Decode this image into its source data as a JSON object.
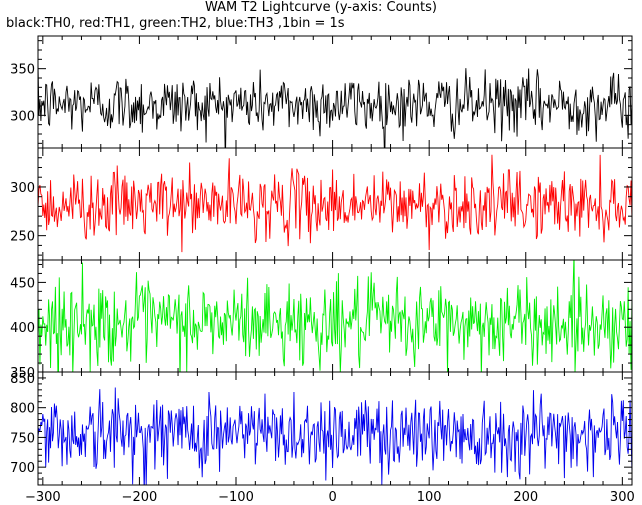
{
  "title": "WAM T2 Lightcurve (y-axis: Counts)",
  "subtitle": "black:TH0, red:TH1, green:TH2, blue:TH3 ,1bin = 1s",
  "chart_data": {
    "type": "line",
    "xlim": [
      -305,
      310
    ],
    "x_ticks": [
      -300,
      -200,
      -100,
      0,
      100,
      200,
      300
    ],
    "x_tick_labels": [
      "−300",
      "−200",
      "−100",
      "0",
      "100",
      "200",
      "300"
    ],
    "bin_seconds": 1,
    "grid": false,
    "panels": [
      {
        "series": "TH0",
        "color": "#000000",
        "mean": 312,
        "spread": 16,
        "ylim": [
          265,
          385
        ],
        "yticks": [
          300,
          350
        ],
        "ytick_labels": [
          "300",
          "350"
        ]
      },
      {
        "series": "TH1",
        "color": "#ff0000",
        "mean": 282,
        "spread": 17,
        "ylim": [
          225,
          340
        ],
        "yticks": [
          250,
          300
        ],
        "ytick_labels": [
          "250",
          "300"
        ]
      },
      {
        "series": "TH2",
        "color": "#00ee00",
        "mean": 405,
        "spread": 23,
        "ylim": [
          350,
          475
        ],
        "yticks": [
          350,
          400,
          450
        ],
        "ytick_labels": [
          "350",
          "400",
          "450"
        ]
      },
      {
        "series": "TH3",
        "color": "#0000ee",
        "mean": 758,
        "spread": 33,
        "ylim": [
          670,
          860
        ],
        "yticks": [
          700,
          750,
          800,
          850
        ],
        "ytick_labels": [
          "700",
          "750",
          "800",
          "850"
        ]
      }
    ]
  }
}
